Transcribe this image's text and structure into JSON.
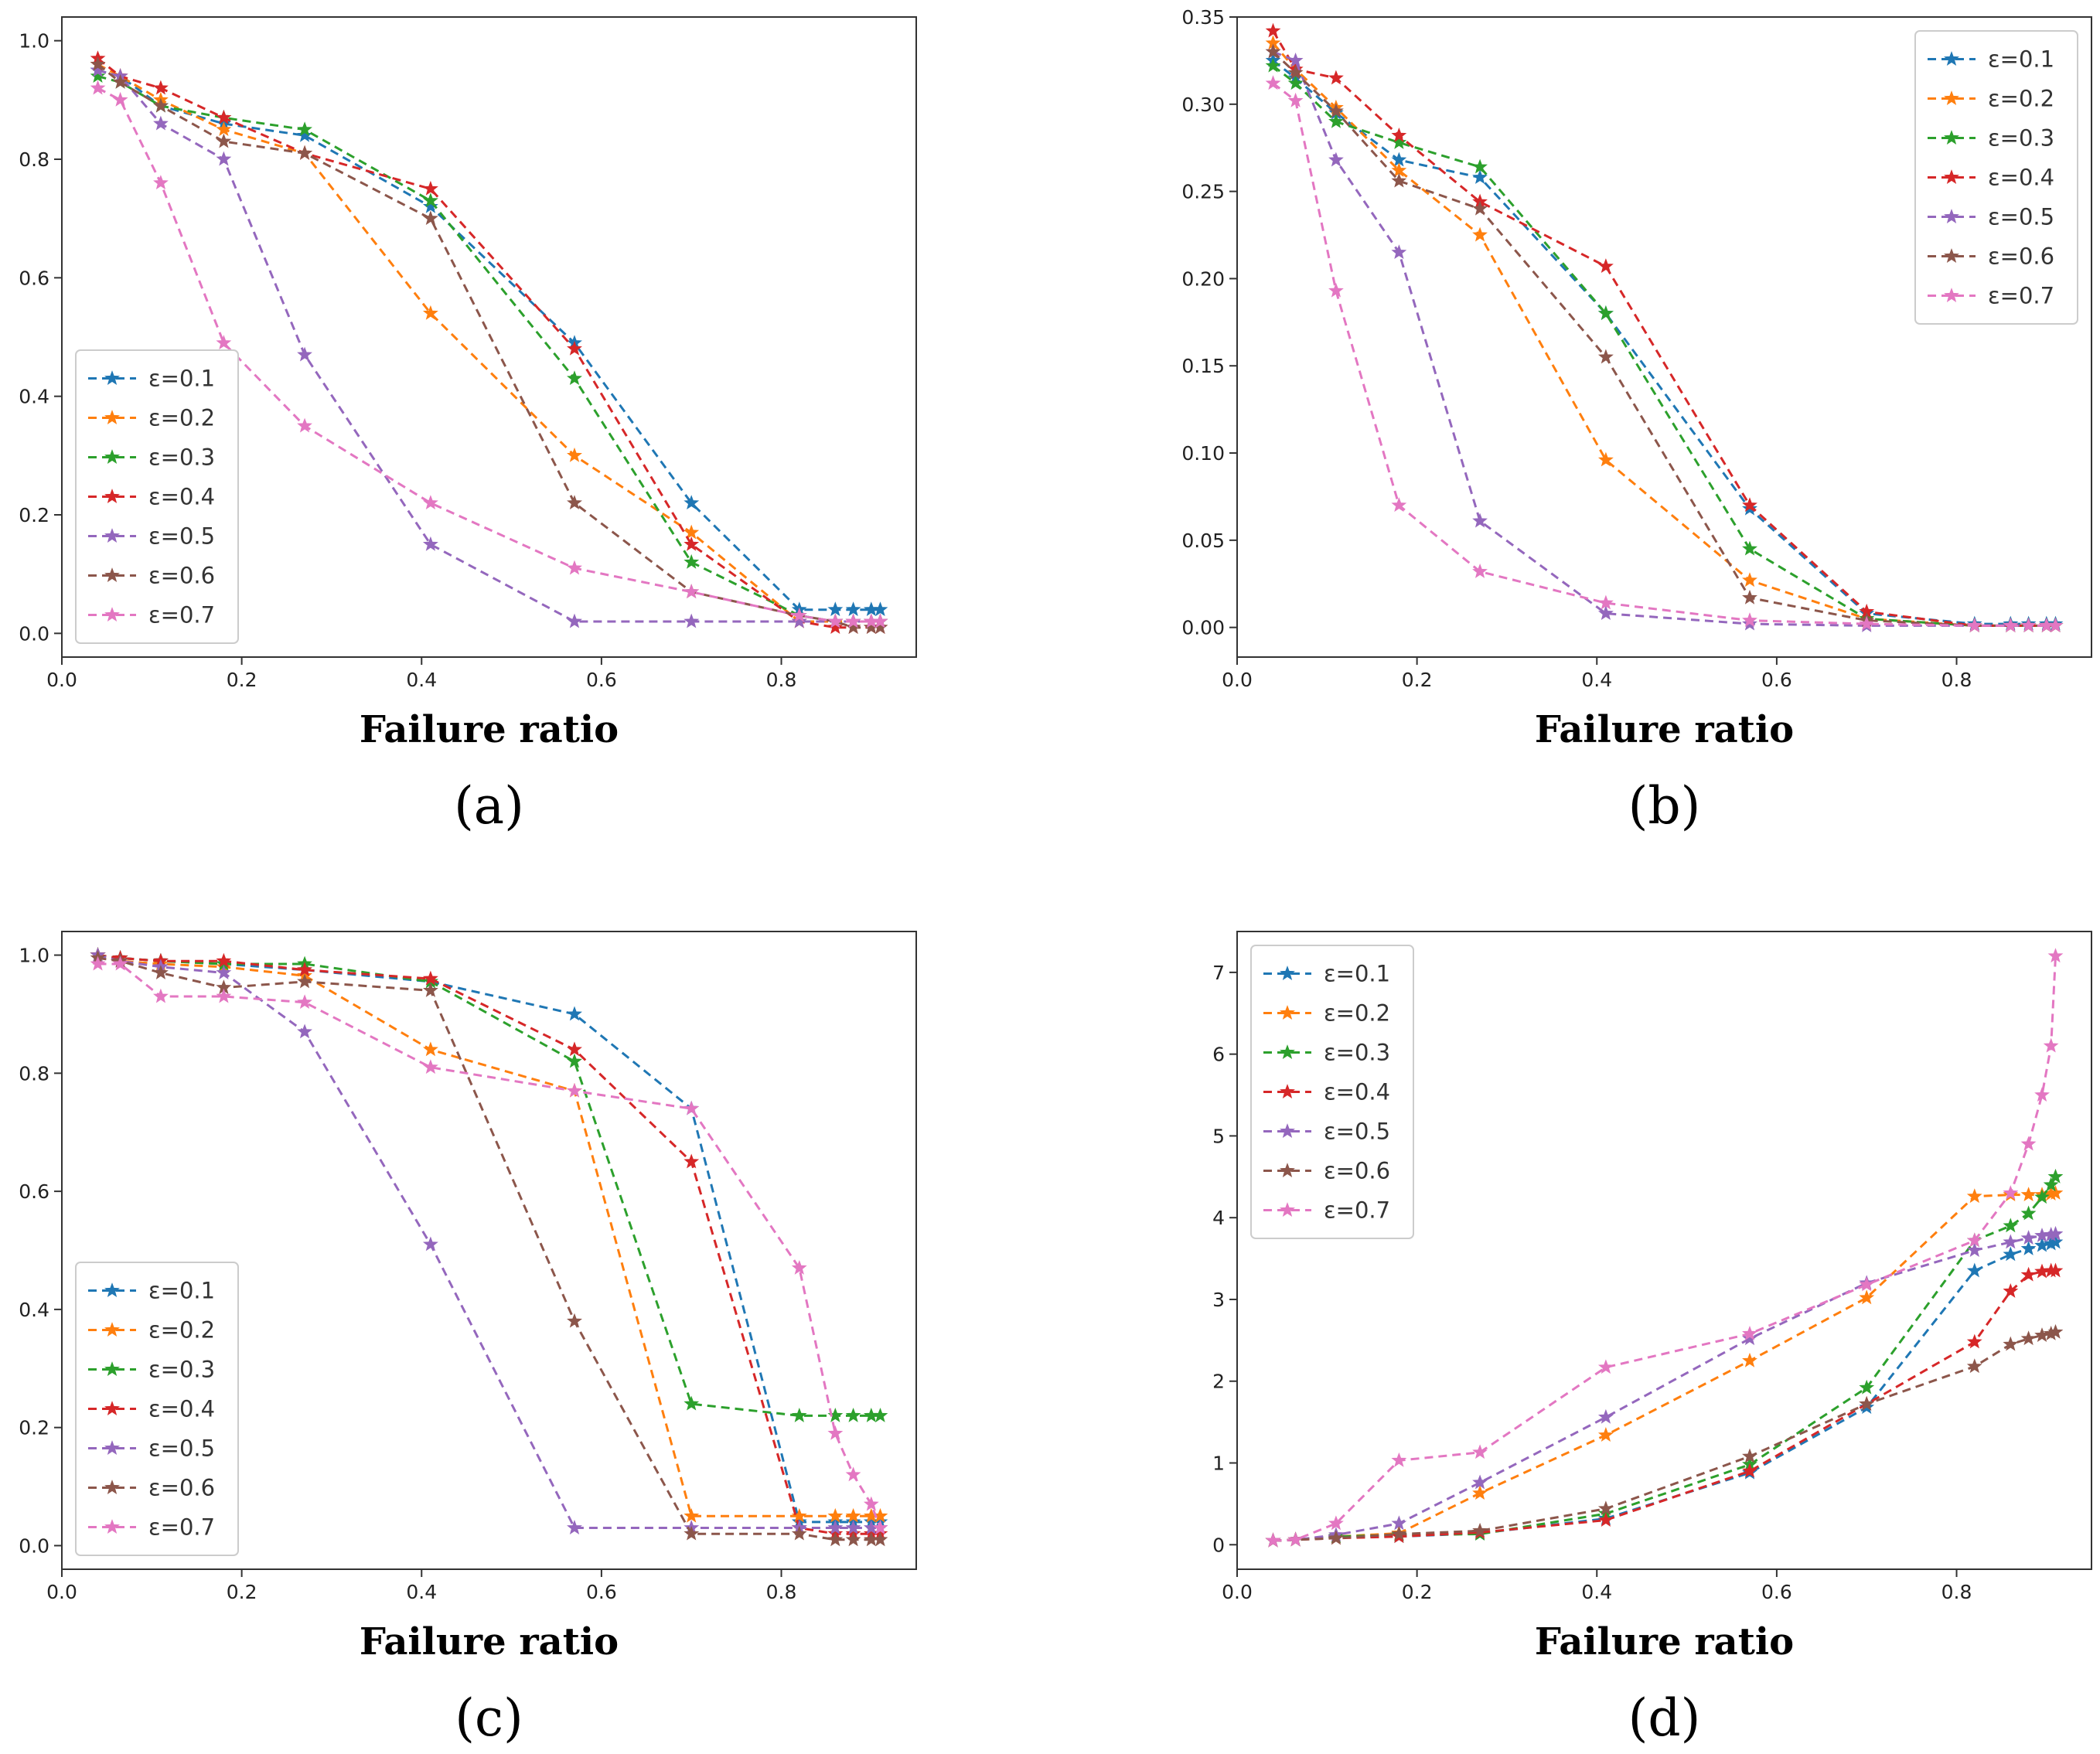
{
  "colors": {
    "e01": "#1f77b4",
    "e02": "#ff7f0e",
    "e03": "#2ca02c",
    "e04": "#d62728",
    "e05": "#9467bd",
    "e06": "#8c564b",
    "e07": "#e377c2"
  },
  "chart_data": [
    {
      "type": "line",
      "panel_label": "(a)",
      "xlabel": "Failure ratio",
      "ylabel": "",
      "xlim": [
        0.0,
        0.95
      ],
      "ylim": [
        -0.04,
        1.04
      ],
      "xticks": [
        "0.0",
        "0.2",
        "0.4",
        "0.6",
        "0.8"
      ],
      "yticks": [
        "0.0",
        "0.2",
        "0.4",
        "0.6",
        "0.8",
        "1.0"
      ],
      "legend_position": "lower-left",
      "grid": false,
      "series": [
        {
          "name": "ε=0.1",
          "color_key": "e01",
          "x": [
            0.04,
            0.065,
            0.11,
            0.18,
            0.27,
            0.41,
            0.57,
            0.7,
            0.82,
            0.86,
            0.88,
            0.9,
            0.91
          ],
          "y": [
            0.95,
            0.94,
            0.89,
            0.86,
            0.84,
            0.72,
            0.49,
            0.22,
            0.04,
            0.04,
            0.04,
            0.04,
            0.04
          ]
        },
        {
          "name": "ε=0.2",
          "color_key": "e02",
          "x": [
            0.04,
            0.065,
            0.11,
            0.18,
            0.27,
            0.41,
            0.57,
            0.7,
            0.82,
            0.86,
            0.88,
            0.9,
            0.91
          ],
          "y": [
            0.96,
            0.94,
            0.9,
            0.85,
            0.81,
            0.54,
            0.3,
            0.17,
            0.02,
            0.02,
            0.02,
            0.02,
            0.02
          ]
        },
        {
          "name": "ε=0.3",
          "color_key": "e03",
          "x": [
            0.04,
            0.065,
            0.11,
            0.18,
            0.27,
            0.41,
            0.57,
            0.7,
            0.82,
            0.86,
            0.88,
            0.9,
            0.91
          ],
          "y": [
            0.94,
            0.93,
            0.89,
            0.87,
            0.85,
            0.73,
            0.43,
            0.12,
            0.03,
            0.02,
            0.02,
            0.02,
            0.02
          ]
        },
        {
          "name": "ε=0.4",
          "color_key": "e04",
          "x": [
            0.04,
            0.065,
            0.11,
            0.18,
            0.27,
            0.41,
            0.57,
            0.7,
            0.82,
            0.86,
            0.88,
            0.9,
            0.91
          ],
          "y": [
            0.97,
            0.94,
            0.92,
            0.87,
            0.81,
            0.75,
            0.48,
            0.15,
            0.02,
            0.01,
            0.01,
            0.01,
            0.01
          ]
        },
        {
          "name": "ε=0.5",
          "color_key": "e05",
          "x": [
            0.04,
            0.065,
            0.11,
            0.18,
            0.27,
            0.41,
            0.57,
            0.7,
            0.82,
            0.86,
            0.88,
            0.9,
            0.91
          ],
          "y": [
            0.95,
            0.94,
            0.86,
            0.8,
            0.47,
            0.15,
            0.02,
            0.02,
            0.02,
            0.02,
            0.02,
            0.02,
            0.02
          ]
        },
        {
          "name": "ε=0.6",
          "color_key": "e06",
          "x": [
            0.04,
            0.065,
            0.11,
            0.18,
            0.27,
            0.41,
            0.57,
            0.7,
            0.82,
            0.86,
            0.88,
            0.9,
            0.91
          ],
          "y": [
            0.96,
            0.93,
            0.89,
            0.83,
            0.81,
            0.7,
            0.22,
            0.07,
            0.03,
            0.02,
            0.01,
            0.01,
            0.01
          ]
        },
        {
          "name": "ε=0.7",
          "color_key": "e07",
          "x": [
            0.04,
            0.065,
            0.11,
            0.18,
            0.27,
            0.41,
            0.57,
            0.7,
            0.82,
            0.86,
            0.88,
            0.9,
            0.91
          ],
          "y": [
            0.92,
            0.9,
            0.76,
            0.49,
            0.35,
            0.22,
            0.11,
            0.07,
            0.03,
            0.02,
            0.02,
            0.02,
            0.02
          ]
        }
      ]
    },
    {
      "type": "line",
      "panel_label": "(b)",
      "xlabel": "Failure ratio",
      "ylabel": "",
      "xlim": [
        0.0,
        0.95
      ],
      "ylim": [
        -0.017,
        0.35
      ],
      "xticks": [
        "0.0",
        "0.2",
        "0.4",
        "0.6",
        "0.8"
      ],
      "yticks": [
        "0.00",
        "0.05",
        "0.10",
        "0.15",
        "0.20",
        "0.25",
        "0.30",
        "0.35"
      ],
      "legend_position": "upper-right",
      "grid": false,
      "series": [
        {
          "name": "ε=0.1",
          "color_key": "e01",
          "x": [
            0.04,
            0.065,
            0.11,
            0.18,
            0.27,
            0.41,
            0.57,
            0.7,
            0.82,
            0.86,
            0.88,
            0.9,
            0.91
          ],
          "y": [
            0.325,
            0.315,
            0.295,
            0.268,
            0.258,
            0.18,
            0.068,
            0.008,
            0.002,
            0.002,
            0.002,
            0.002,
            0.002
          ]
        },
        {
          "name": "ε=0.2",
          "color_key": "e02",
          "x": [
            0.04,
            0.065,
            0.11,
            0.18,
            0.27,
            0.41,
            0.57,
            0.7,
            0.82,
            0.86,
            0.88,
            0.9,
            0.91
          ],
          "y": [
            0.335,
            0.32,
            0.298,
            0.262,
            0.225,
            0.096,
            0.027,
            0.005,
            0.001,
            0.001,
            0.001,
            0.001,
            0.001
          ]
        },
        {
          "name": "ε=0.3",
          "color_key": "e03",
          "x": [
            0.04,
            0.065,
            0.11,
            0.18,
            0.27,
            0.41,
            0.57,
            0.7,
            0.82,
            0.86,
            0.88,
            0.9,
            0.91
          ],
          "y": [
            0.322,
            0.312,
            0.29,
            0.278,
            0.264,
            0.18,
            0.045,
            0.005,
            0.001,
            0.001,
            0.001,
            0.001,
            0.001
          ]
        },
        {
          "name": "ε=0.4",
          "color_key": "e04",
          "x": [
            0.04,
            0.065,
            0.11,
            0.18,
            0.27,
            0.41,
            0.57,
            0.7,
            0.82,
            0.86,
            0.88,
            0.9,
            0.91
          ],
          "y": [
            0.342,
            0.32,
            0.315,
            0.282,
            0.244,
            0.207,
            0.07,
            0.009,
            0.001,
            0.001,
            0.001,
            0.001,
            0.001
          ]
        },
        {
          "name": "ε=0.5",
          "color_key": "e05",
          "x": [
            0.04,
            0.065,
            0.11,
            0.18,
            0.27,
            0.41,
            0.57,
            0.7,
            0.82,
            0.86,
            0.88,
            0.9,
            0.91
          ],
          "y": [
            0.33,
            0.325,
            0.268,
            0.215,
            0.061,
            0.008,
            0.002,
            0.001,
            0.001,
            0.001,
            0.001,
            0.001,
            0.001
          ]
        },
        {
          "name": "ε=0.6",
          "color_key": "e06",
          "x": [
            0.04,
            0.065,
            0.11,
            0.18,
            0.27,
            0.41,
            0.57,
            0.7,
            0.82,
            0.86,
            0.88,
            0.9,
            0.91
          ],
          "y": [
            0.33,
            0.318,
            0.296,
            0.256,
            0.24,
            0.155,
            0.017,
            0.004,
            0.001,
            0.001,
            0.001,
            0.001,
            0.001
          ]
        },
        {
          "name": "ε=0.7",
          "color_key": "e07",
          "x": [
            0.04,
            0.065,
            0.11,
            0.18,
            0.27,
            0.41,
            0.57,
            0.7,
            0.82,
            0.86,
            0.88,
            0.9,
            0.91
          ],
          "y": [
            0.312,
            0.302,
            0.193,
            0.07,
            0.032,
            0.014,
            0.004,
            0.002,
            0.001,
            0.001,
            0.001,
            0.001,
            0.001
          ]
        }
      ]
    },
    {
      "type": "line",
      "panel_label": "(c)",
      "xlabel": "Failure ratio",
      "ylabel": "",
      "xlim": [
        0.0,
        0.95
      ],
      "ylim": [
        -0.04,
        1.04
      ],
      "xticks": [
        "0.0",
        "0.2",
        "0.4",
        "0.6",
        "0.8"
      ],
      "yticks": [
        "0.0",
        "0.2",
        "0.4",
        "0.6",
        "0.8",
        "1.0"
      ],
      "legend_position": "lower-left",
      "grid": false,
      "series": [
        {
          "name": "ε=0.1",
          "color_key": "e01",
          "x": [
            0.04,
            0.065,
            0.11,
            0.18,
            0.27,
            0.41,
            0.57,
            0.7,
            0.82,
            0.86,
            0.88,
            0.9,
            0.91
          ],
          "y": [
            1.0,
            0.995,
            0.99,
            0.985,
            0.975,
            0.955,
            0.9,
            0.74,
            0.04,
            0.04,
            0.04,
            0.04,
            0.04
          ]
        },
        {
          "name": "ε=0.2",
          "color_key": "e02",
          "x": [
            0.04,
            0.065,
            0.11,
            0.18,
            0.27,
            0.41,
            0.57,
            0.7,
            0.82,
            0.86,
            0.88,
            0.9,
            0.91
          ],
          "y": [
            1.0,
            0.99,
            0.985,
            0.98,
            0.965,
            0.84,
            0.77,
            0.05,
            0.05,
            0.05,
            0.05,
            0.05,
            0.05
          ]
        },
        {
          "name": "ε=0.3",
          "color_key": "e03",
          "x": [
            0.04,
            0.065,
            0.11,
            0.18,
            0.27,
            0.41,
            0.57,
            0.7,
            0.82,
            0.86,
            0.88,
            0.9,
            0.91
          ],
          "y": [
            1.0,
            0.995,
            0.99,
            0.985,
            0.985,
            0.955,
            0.82,
            0.24,
            0.22,
            0.22,
            0.22,
            0.22,
            0.22
          ]
        },
        {
          "name": "ε=0.4",
          "color_key": "e04",
          "x": [
            0.04,
            0.065,
            0.11,
            0.18,
            0.27,
            0.41,
            0.57,
            0.7,
            0.82,
            0.86,
            0.88,
            0.9,
            0.91
          ],
          "y": [
            1.0,
            0.995,
            0.99,
            0.99,
            0.975,
            0.96,
            0.84,
            0.65,
            0.03,
            0.02,
            0.02,
            0.02,
            0.02
          ]
        },
        {
          "name": "ε=0.5",
          "color_key": "e05",
          "x": [
            0.04,
            0.065,
            0.11,
            0.18,
            0.27,
            0.41,
            0.57,
            0.7,
            0.82,
            0.86,
            0.88,
            0.9,
            0.91
          ],
          "y": [
            1.0,
            0.99,
            0.98,
            0.97,
            0.87,
            0.51,
            0.03,
            0.03,
            0.03,
            0.03,
            0.03,
            0.03,
            0.03
          ]
        },
        {
          "name": "ε=0.6",
          "color_key": "e06",
          "x": [
            0.04,
            0.065,
            0.11,
            0.18,
            0.27,
            0.41,
            0.57,
            0.7,
            0.82,
            0.86,
            0.88,
            0.9,
            0.91
          ],
          "y": [
            0.995,
            0.99,
            0.97,
            0.945,
            0.955,
            0.94,
            0.38,
            0.02,
            0.02,
            0.01,
            0.01,
            0.01,
            0.01
          ]
        },
        {
          "name": "ε=0.7",
          "color_key": "e07",
          "x": [
            0.04,
            0.065,
            0.11,
            0.18,
            0.27,
            0.41,
            0.57,
            0.7,
            0.82,
            0.86,
            0.88,
            0.9,
            0.91
          ],
          "y": [
            0.985,
            0.985,
            0.93,
            0.93,
            0.92,
            0.81,
            0.77,
            0.74,
            0.47,
            0.19,
            0.12,
            0.07,
            0.03
          ]
        }
      ]
    },
    {
      "type": "line",
      "panel_label": "(d)",
      "xlabel": "Failure ratio",
      "ylabel": "",
      "xlim": [
        0.0,
        0.95
      ],
      "ylim": [
        -0.3,
        7.5
      ],
      "xticks": [
        "0.0",
        "0.2",
        "0.4",
        "0.6",
        "0.8"
      ],
      "yticks": [
        "0",
        "1",
        "2",
        "3",
        "4",
        "5",
        "6",
        "7"
      ],
      "legend_position": "upper-left",
      "grid": false,
      "series": [
        {
          "name": "ε=0.1",
          "color_key": "e01",
          "x": [
            0.04,
            0.065,
            0.11,
            0.18,
            0.27,
            0.41,
            0.57,
            0.7,
            0.82,
            0.86,
            0.88,
            0.895,
            0.905,
            0.91
          ],
          "y": [
            0.05,
            0.06,
            0.1,
            0.1,
            0.14,
            0.32,
            0.88,
            1.68,
            3.35,
            3.55,
            3.62,
            3.66,
            3.68,
            3.7
          ]
        },
        {
          "name": "ε=0.2",
          "color_key": "e02",
          "x": [
            0.04,
            0.065,
            0.11,
            0.18,
            0.27,
            0.41,
            0.57,
            0.7,
            0.82,
            0.86,
            0.88,
            0.895,
            0.905,
            0.91
          ],
          "y": [
            0.05,
            0.06,
            0.1,
            0.14,
            0.63,
            1.34,
            2.25,
            3.02,
            4.26,
            4.28,
            4.28,
            4.28,
            4.29,
            4.3
          ]
        },
        {
          "name": "ε=0.3",
          "color_key": "e03",
          "x": [
            0.04,
            0.065,
            0.11,
            0.18,
            0.27,
            0.41,
            0.57,
            0.7,
            0.82,
            0.86,
            0.88,
            0.895,
            0.905,
            0.91
          ],
          "y": [
            0.05,
            0.06,
            0.1,
            0.12,
            0.13,
            0.38,
            0.98,
            1.92,
            3.72,
            3.9,
            4.05,
            4.25,
            4.4,
            4.5
          ]
        },
        {
          "name": "ε=0.4",
          "color_key": "e04",
          "x": [
            0.04,
            0.065,
            0.11,
            0.18,
            0.27,
            0.41,
            0.57,
            0.7,
            0.82,
            0.86,
            0.88,
            0.895,
            0.905,
            0.91
          ],
          "y": [
            0.05,
            0.06,
            0.08,
            0.1,
            0.15,
            0.3,
            0.9,
            1.72,
            2.48,
            3.1,
            3.3,
            3.34,
            3.35,
            3.35
          ]
        },
        {
          "name": "ε=0.5",
          "color_key": "e05",
          "x": [
            0.04,
            0.065,
            0.11,
            0.18,
            0.27,
            0.41,
            0.57,
            0.7,
            0.82,
            0.86,
            0.88,
            0.895,
            0.905,
            0.91
          ],
          "y": [
            0.05,
            0.06,
            0.12,
            0.26,
            0.76,
            1.56,
            2.52,
            3.2,
            3.6,
            3.7,
            3.75,
            3.78,
            3.79,
            3.8
          ]
        },
        {
          "name": "ε=0.6",
          "color_key": "e06",
          "x": [
            0.04,
            0.065,
            0.11,
            0.18,
            0.27,
            0.41,
            0.57,
            0.7,
            0.82,
            0.86,
            0.88,
            0.895,
            0.905,
            0.91
          ],
          "y": [
            0.05,
            0.06,
            0.08,
            0.13,
            0.17,
            0.44,
            1.08,
            1.72,
            2.18,
            2.45,
            2.52,
            2.56,
            2.58,
            2.6
          ]
        },
        {
          "name": "ε=0.7",
          "color_key": "e07",
          "x": [
            0.04,
            0.065,
            0.11,
            0.18,
            0.27,
            0.41,
            0.57,
            0.7,
            0.82,
            0.86,
            0.88,
            0.895,
            0.905,
            0.91
          ],
          "y": [
            0.05,
            0.06,
            0.26,
            1.03,
            1.13,
            2.17,
            2.58,
            3.18,
            3.72,
            4.3,
            4.9,
            5.5,
            6.1,
            7.2
          ]
        }
      ]
    }
  ]
}
